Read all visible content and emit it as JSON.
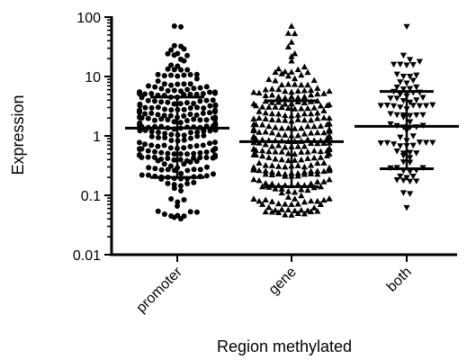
{
  "chart_data": {
    "type": "scatter",
    "subtype": "dot-plot",
    "title": "",
    "xlabel": "Region methylated",
    "ylabel": "Expression",
    "y_scale": "log",
    "ylim": [
      0.01,
      100
    ],
    "y_ticks": [
      {
        "value": 0.01,
        "label": "0.01"
      },
      {
        "value": 0.1,
        "label": "0.1"
      },
      {
        "value": 1,
        "label": "1"
      },
      {
        "value": 10,
        "label": "10"
      },
      {
        "value": 100,
        "label": "100"
      }
    ],
    "grid": false,
    "legend": "none",
    "categories": [
      "promoter",
      "gene",
      "both"
    ],
    "groups": [
      {
        "category": "promoter",
        "marker": "circle",
        "color": "#000000",
        "mean": 1.35,
        "sd_upper": 4.5,
        "sd_lower": 0.2,
        "n": 260,
        "y_range": [
          0.04,
          70
        ]
      },
      {
        "category": "gene",
        "marker": "triangle-up",
        "color": "#000000",
        "mean": 0.8,
        "sd_upper": 3.9,
        "sd_lower": 0.14,
        "n": 300,
        "y_range": [
          0.045,
          70
        ]
      },
      {
        "category": "both",
        "marker": "triangle-down",
        "color": "#000000",
        "mean": 1.45,
        "sd_upper": 5.6,
        "sd_lower": 0.28,
        "n": 90,
        "y_range": [
          0.055,
          70
        ]
      }
    ]
  }
}
